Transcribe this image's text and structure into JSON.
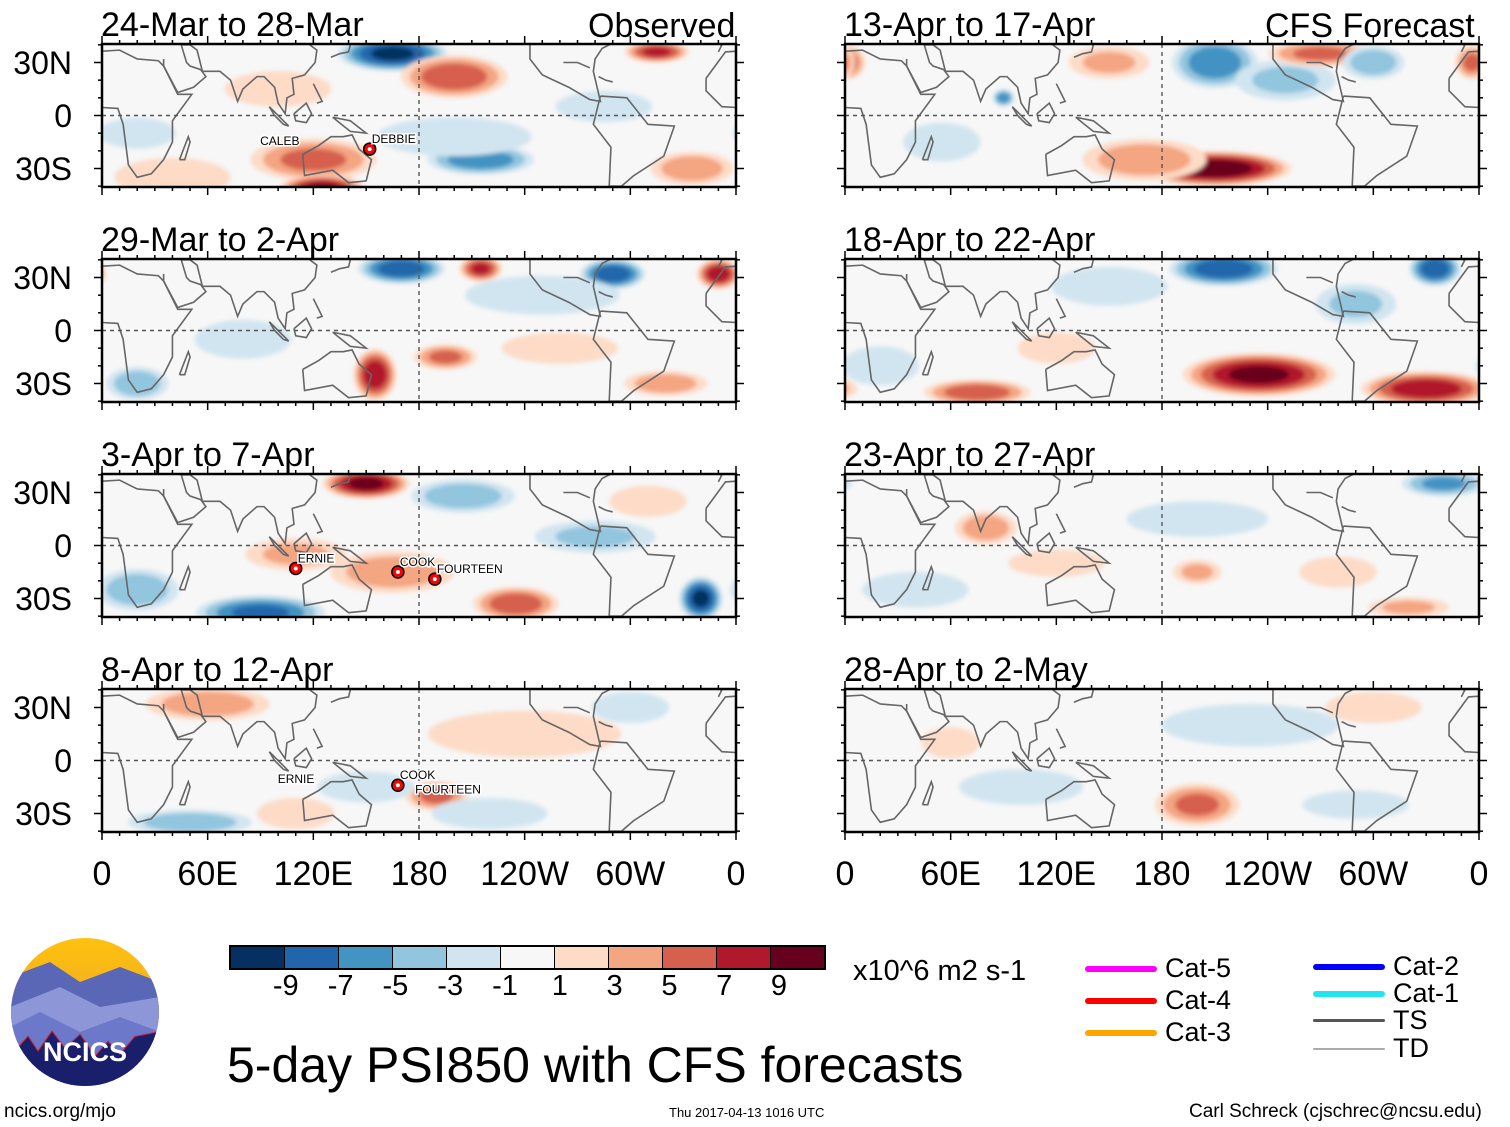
{
  "header": {
    "left_label": "Observed",
    "right_label": "CFS Forecast"
  },
  "title": "5-day PSI850 with CFS forecasts",
  "footer": {
    "url": "ncics.org/mjo",
    "timestamp": "Thu 2017-04-13 1016 UTC",
    "author": "Carl Schreck (cjschrec@ncsu.edu)"
  },
  "logo": {
    "text": "NCICS"
  },
  "colorbar": {
    "units": "x10^6 m2 s-1",
    "ticks": [
      "-9",
      "-7",
      "-5",
      "-3",
      "-1",
      "1",
      "3",
      "5",
      "7",
      "9"
    ],
    "colors": [
      "#053061",
      "#2166ac",
      "#4393c3",
      "#92c5de",
      "#d1e5f0",
      "#f7f7f7",
      "#fddbc7",
      "#f4a582",
      "#d6604d",
      "#b2182b",
      "#67001f"
    ]
  },
  "legend": [
    {
      "label": "Cat-5",
      "color": "#ff00ff"
    },
    {
      "label": "Cat-4",
      "color": "#ff0000"
    },
    {
      "label": "Cat-3",
      "color": "#ffa500"
    },
    {
      "label": "Cat-2",
      "color": "#0000ff"
    },
    {
      "label": "Cat-1",
      "color": "#22e5f0"
    },
    {
      "label": "TS",
      "color": "#555555"
    },
    {
      "label": "TD",
      "color": "#aaaaaa"
    }
  ],
  "chart_data": {
    "type": "heatmap",
    "variable": "850-hPa streamfunction anomaly",
    "lon_ticks": [
      "0",
      "60E",
      "120E",
      "180",
      "120W",
      "60W",
      "0"
    ],
    "lat_ticks": [
      "30N",
      "0",
      "30S"
    ],
    "lon_range": [
      0,
      360
    ],
    "lat_range": [
      -40,
      40
    ],
    "panels": [
      {
        "title": "24-Mar to 28-Mar",
        "column": "left",
        "anomalies": [
          {
            "lon": 165,
            "lat": 35,
            "v": -10,
            "rx": 25,
            "ry": 8
          },
          {
            "lon": 200,
            "lat": 22,
            "v": 7,
            "rx": 25,
            "ry": 10
          },
          {
            "lon": 120,
            "lat": -25,
            "v": 6,
            "rx": 30,
            "ry": 10
          },
          {
            "lon": 125,
            "lat": -42,
            "v": 10,
            "rx": 20,
            "ry": 7
          },
          {
            "lon": 215,
            "lat": -25,
            "v": -7,
            "rx": 25,
            "ry": 7
          },
          {
            "lon": 200,
            "lat": -12,
            "v": -3,
            "rx": 40,
            "ry": 10
          },
          {
            "lon": 335,
            "lat": -30,
            "v": 5,
            "rx": 20,
            "ry": 8
          },
          {
            "lon": 315,
            "lat": 36,
            "v": 8,
            "rx": 15,
            "ry": 5
          },
          {
            "lon": 285,
            "lat": 5,
            "v": -3,
            "rx": 25,
            "ry": 8
          },
          {
            "lon": 40,
            "lat": -35,
            "v": 3,
            "rx": 30,
            "ry": 10
          },
          {
            "lon": 20,
            "lat": -10,
            "v": -3,
            "rx": 20,
            "ry": 8
          },
          {
            "lon": 100,
            "lat": 15,
            "v": 2,
            "rx": 30,
            "ry": 10
          }
        ],
        "storms": [
          {
            "name": "CALEB",
            "lon": 100,
            "lat": -20,
            "symbol": false
          },
          {
            "name": "DEBBIE",
            "lon": 152,
            "lat": -19,
            "symbol": true
          }
        ]
      },
      {
        "title": "29-Mar to 2-Apr",
        "column": "left",
        "anomalies": [
          {
            "lon": 170,
            "lat": 35,
            "v": -9,
            "rx": 20,
            "ry": 7
          },
          {
            "lon": 215,
            "lat": 35,
            "v": 8,
            "rx": 10,
            "ry": 6
          },
          {
            "lon": 290,
            "lat": 32,
            "v": -9,
            "rx": 15,
            "ry": 7
          },
          {
            "lon": 350,
            "lat": 32,
            "v": 9,
            "rx": 10,
            "ry": 7
          },
          {
            "lon": 155,
            "lat": -25,
            "v": 9,
            "rx": 10,
            "ry": 12
          },
          {
            "lon": 195,
            "lat": -15,
            "v": 6,
            "rx": 15,
            "ry": 6
          },
          {
            "lon": 250,
            "lat": 20,
            "v": -3,
            "rx": 40,
            "ry": 10
          },
          {
            "lon": 320,
            "lat": -30,
            "v": 5,
            "rx": 20,
            "ry": 6
          },
          {
            "lon": 20,
            "lat": -30,
            "v": -5,
            "rx": 15,
            "ry": 8
          },
          {
            "lon": 260,
            "lat": -10,
            "v": 3,
            "rx": 30,
            "ry": 8
          },
          {
            "lon": 80,
            "lat": -5,
            "v": -3,
            "rx": 25,
            "ry": 10
          }
        ],
        "storms": []
      },
      {
        "title": "3-Apr to 7-Apr",
        "column": "left",
        "anomalies": [
          {
            "lon": 150,
            "lat": 35,
            "v": 10,
            "rx": 20,
            "ry": 7
          },
          {
            "lon": 205,
            "lat": 28,
            "v": -5,
            "rx": 25,
            "ry": 8
          },
          {
            "lon": 340,
            "lat": -30,
            "v": -10,
            "rx": 10,
            "ry": 10
          },
          {
            "lon": 90,
            "lat": -38,
            "v": -8,
            "rx": 30,
            "ry": 8
          },
          {
            "lon": 235,
            "lat": -33,
            "v": 7,
            "rx": 20,
            "ry": 8
          },
          {
            "lon": 165,
            "lat": -15,
            "v": 5,
            "rx": 30,
            "ry": 10
          },
          {
            "lon": 110,
            "lat": -5,
            "v": 4,
            "rx": 25,
            "ry": 8
          },
          {
            "lon": 20,
            "lat": -25,
            "v": -5,
            "rx": 20,
            "ry": 10
          },
          {
            "lon": 280,
            "lat": 5,
            "v": -4,
            "rx": 30,
            "ry": 8
          },
          {
            "lon": 310,
            "lat": 25,
            "v": 3,
            "rx": 20,
            "ry": 8
          }
        ],
        "storms": [
          {
            "name": "ERNIE",
            "lon": 110,
            "lat": -13,
            "symbol": true
          },
          {
            "name": "COOK",
            "lon": 168,
            "lat": -15,
            "symbol": true
          },
          {
            "name": "FOURTEEN",
            "lon": 189,
            "lat": -19,
            "symbol": true
          }
        ]
      },
      {
        "title": "8-Apr to 12-Apr",
        "column": "left",
        "anomalies": [
          {
            "lon": 60,
            "lat": 32,
            "v": 5,
            "rx": 30,
            "ry": 8
          },
          {
            "lon": 190,
            "lat": -20,
            "v": 6,
            "rx": 15,
            "ry": 7
          },
          {
            "lon": 150,
            "lat": -15,
            "v": -3,
            "rx": 25,
            "ry": 8
          },
          {
            "lon": 50,
            "lat": -35,
            "v": -5,
            "rx": 30,
            "ry": 6
          },
          {
            "lon": 240,
            "lat": 15,
            "v": 3,
            "rx": 50,
            "ry": 12
          },
          {
            "lon": 300,
            "lat": 30,
            "v": -3,
            "rx": 20,
            "ry": 8
          },
          {
            "lon": 110,
            "lat": -30,
            "v": 3,
            "rx": 20,
            "ry": 8
          },
          {
            "lon": 220,
            "lat": -30,
            "v": -3,
            "rx": 30,
            "ry": 8
          }
        ],
        "storms": [
          {
            "name": "ERNIE",
            "lon": 110,
            "lat": -16,
            "symbol": false
          },
          {
            "name": "COOK",
            "lon": 168,
            "lat": -14,
            "symbol": true
          },
          {
            "name": "FOURTEEN",
            "lon": 188,
            "lat": -22,
            "symbol": false
          }
        ]
      },
      {
        "title": "13-Apr to 17-Apr",
        "column": "right",
        "anomalies": [
          {
            "lon": 210,
            "lat": 30,
            "v": -7,
            "rx": 20,
            "ry": 12
          },
          {
            "lon": 210,
            "lat": -30,
            "v": 11,
            "rx": 35,
            "ry": 8
          },
          {
            "lon": 170,
            "lat": -25,
            "v": 5,
            "rx": 30,
            "ry": 10
          },
          {
            "lon": 90,
            "lat": 10,
            "v": -7,
            "rx": 5,
            "ry": 4
          },
          {
            "lon": 150,
            "lat": 30,
            "v": 4,
            "rx": 20,
            "ry": 8
          },
          {
            "lon": 250,
            "lat": 20,
            "v": -4,
            "rx": 25,
            "ry": 10
          },
          {
            "lon": 270,
            "lat": 35,
            "v": 6,
            "rx": 25,
            "ry": 6
          },
          {
            "lon": 300,
            "lat": 30,
            "v": -5,
            "rx": 15,
            "ry": 8
          },
          {
            "lon": 55,
            "lat": -15,
            "v": -3,
            "rx": 20,
            "ry": 10
          },
          {
            "lon": 2,
            "lat": 30,
            "v": 6,
            "rx": 8,
            "ry": 8
          },
          {
            "lon": 356,
            "lat": 30,
            "v": 6,
            "rx": 8,
            "ry": 8
          }
        ],
        "storms": []
      },
      {
        "title": "18-Apr to 22-Apr",
        "column": "right",
        "anomalies": [
          {
            "lon": 215,
            "lat": 35,
            "v": -9,
            "rx": 25,
            "ry": 8
          },
          {
            "lon": 335,
            "lat": 35,
            "v": -9,
            "rx": 12,
            "ry": 8
          },
          {
            "lon": 235,
            "lat": -25,
            "v": 10,
            "rx": 35,
            "ry": 10
          },
          {
            "lon": 330,
            "lat": -33,
            "v": 9,
            "rx": 30,
            "ry": 8
          },
          {
            "lon": 75,
            "lat": -35,
            "v": 7,
            "rx": 25,
            "ry": 6
          },
          {
            "lon": 150,
            "lat": 25,
            "v": -3,
            "rx": 30,
            "ry": 10
          },
          {
            "lon": 290,
            "lat": 15,
            "v": -4,
            "rx": 20,
            "ry": 10
          },
          {
            "lon": 120,
            "lat": -10,
            "v": 3,
            "rx": 20,
            "ry": 8
          },
          {
            "lon": 20,
            "lat": -20,
            "v": -3,
            "rx": 20,
            "ry": 10
          }
        ],
        "storms": []
      },
      {
        "title": "23-Apr to 27-Apr",
        "column": "right",
        "anomalies": [
          {
            "lon": 80,
            "lat": 10,
            "v": 5,
            "rx": 15,
            "ry": 8
          },
          {
            "lon": 200,
            "lat": -15,
            "v": 4,
            "rx": 12,
            "ry": 6
          },
          {
            "lon": 200,
            "lat": 15,
            "v": -2,
            "rx": 40,
            "ry": 10
          },
          {
            "lon": 340,
            "lat": 35,
            "v": -6,
            "rx": 20,
            "ry": 6
          },
          {
            "lon": 280,
            "lat": -15,
            "v": 3,
            "rx": 20,
            "ry": 8
          },
          {
            "lon": 120,
            "lat": -10,
            "v": 3,
            "rx": 25,
            "ry": 7
          },
          {
            "lon": 40,
            "lat": -25,
            "v": -2,
            "rx": 30,
            "ry": 10
          },
          {
            "lon": 320,
            "lat": -35,
            "v": 4,
            "rx": 20,
            "ry": 5
          }
        ],
        "storms": []
      },
      {
        "title": "28-Apr to 2-May",
        "column": "right",
        "anomalies": [
          {
            "lon": 200,
            "lat": -25,
            "v": 6,
            "rx": 20,
            "ry": 10
          },
          {
            "lon": 230,
            "lat": 20,
            "v": -2,
            "rx": 50,
            "ry": 12
          },
          {
            "lon": 60,
            "lat": 10,
            "v": 3,
            "rx": 15,
            "ry": 8
          },
          {
            "lon": 300,
            "lat": 30,
            "v": 3,
            "rx": 25,
            "ry": 8
          },
          {
            "lon": 100,
            "lat": -15,
            "v": -2,
            "rx": 35,
            "ry": 10
          },
          {
            "lon": 290,
            "lat": -25,
            "v": -2,
            "rx": 30,
            "ry": 8
          }
        ],
        "storms": []
      }
    ]
  }
}
